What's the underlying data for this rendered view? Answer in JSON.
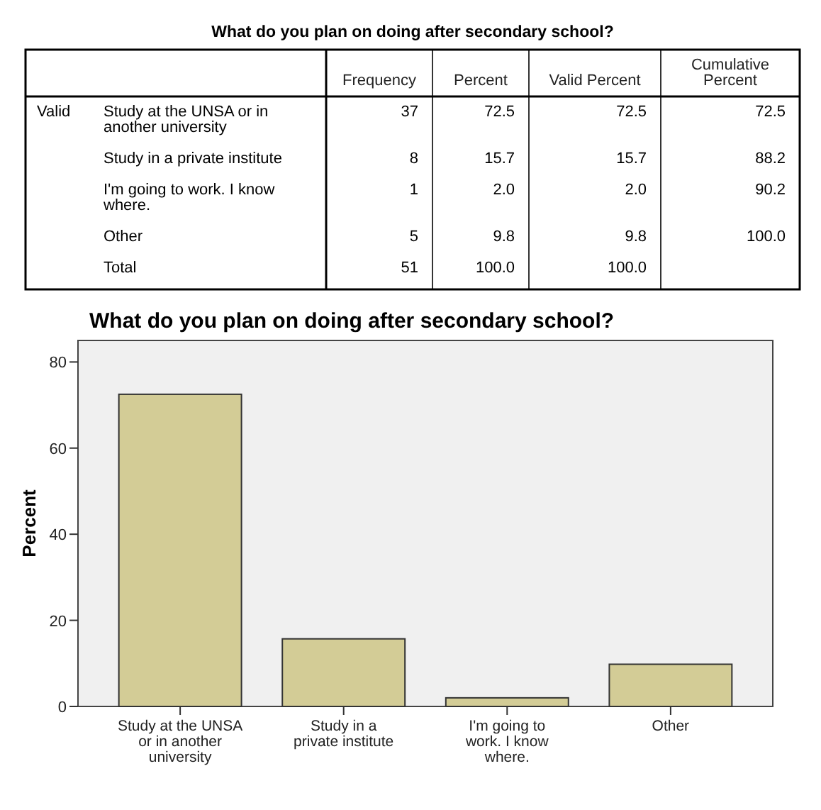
{
  "chart_data": [
    {
      "type": "other",
      "title": "What do you plan on doing after secondary school?",
      "categories": [
        "Frequency",
        "Percent",
        "Valid Percent",
        "Cumulative Percent"
      ],
      "annotations": [
        "Valid"
      ],
      "series": [
        {
          "name": "Study at the UNSA or in another university",
          "values": [
            37,
            72.5,
            72.5,
            72.5
          ],
          "value_labels": [
            "37",
            "72.5",
            "72.5",
            "72.5"
          ]
        },
        {
          "name": "Study in a private institute",
          "values": [
            8,
            15.7,
            15.7,
            88.2
          ],
          "value_labels": [
            "8",
            "15.7",
            "15.7",
            "88.2"
          ]
        },
        {
          "name": "I'm going to work. I know where.",
          "values": [
            1,
            2.0,
            2.0,
            90.2
          ],
          "value_labels": [
            "1",
            "2.0",
            "2.0",
            "90.2"
          ]
        },
        {
          "name": "Other",
          "values": [
            5,
            9.8,
            9.8,
            100.0
          ],
          "value_labels": [
            "5",
            "9.8",
            "9.8",
            "100.0"
          ]
        },
        {
          "name": "Total",
          "values": [
            51,
            100.0,
            100.0,
            null
          ],
          "value_labels": [
            "51",
            "100.0",
            "100.0",
            null
          ]
        }
      ],
      "data_labels": true
    },
    {
      "type": "bar",
      "title": "What do you plan on doing after secondary school?",
      "ylabel": "Percent",
      "categories": [
        "Study at the UNSA or in another university",
        "Study in a private institute",
        "I'm going to work. I know where.",
        "Other"
      ],
      "values": [
        72.5,
        15.7,
        2.0,
        9.8
      ],
      "color": "#d3cc96",
      "ylim": [
        0,
        85
      ],
      "yticks": [
        0,
        20,
        40,
        60,
        80
      ],
      "grid": false
    }
  ]
}
